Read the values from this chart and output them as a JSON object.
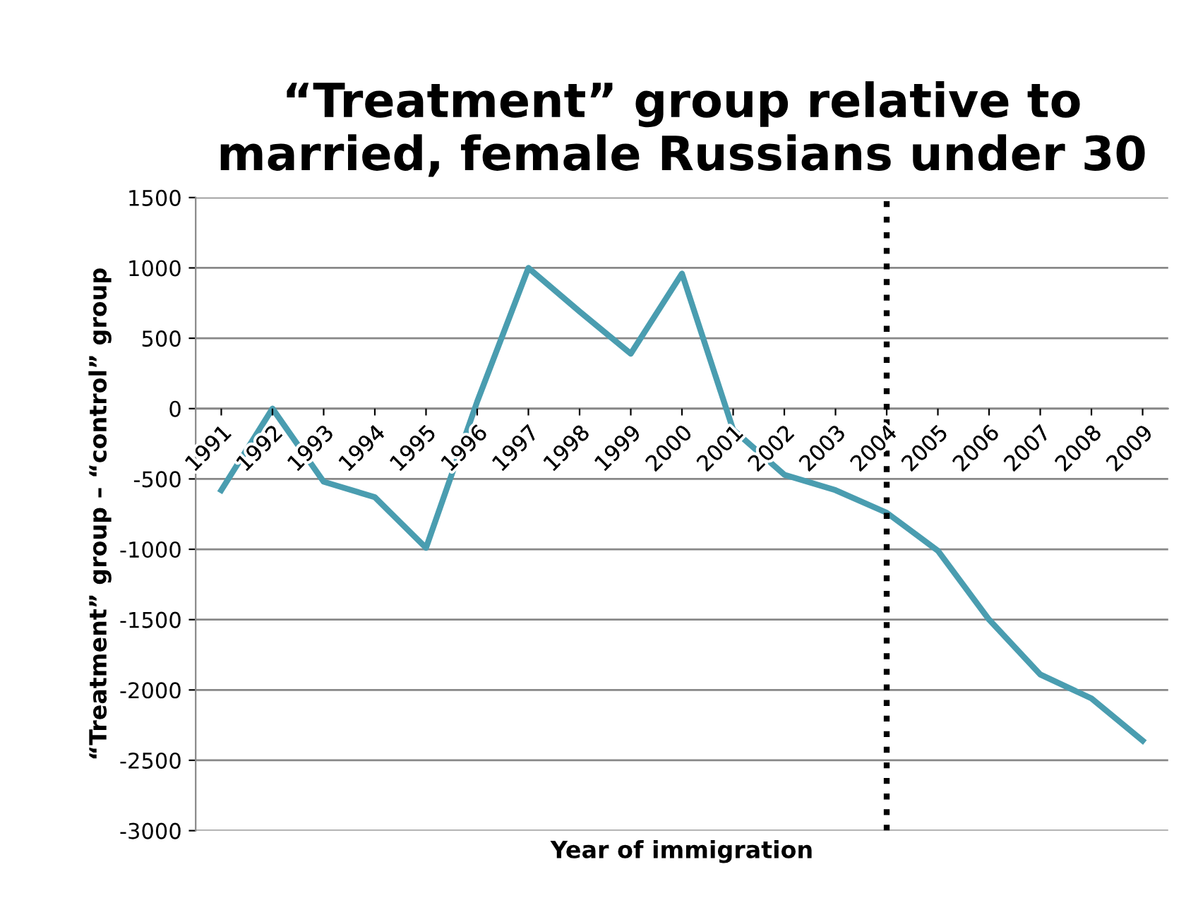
{
  "chart_data": {
    "type": "line",
    "title": "“Treatment” group relative to\nmarried, female Russians under 30",
    "xlabel": "Year of immigration",
    "ylabel": "“Treatment” group – “control” group",
    "categories": [
      "1991",
      "1992",
      "1993",
      "1994",
      "1995",
      "1996",
      "1997",
      "1998",
      "1999",
      "2000",
      "2001",
      "2002",
      "2003",
      "2004",
      "2005",
      "2006",
      "2007",
      "2008",
      "2009"
    ],
    "series": [
      {
        "color": "#4a9db0",
        "values": [
          -580,
          0,
          -520,
          -630,
          -990,
          50,
          1000,
          690,
          390,
          960,
          -150,
          -470,
          -580,
          -740,
          -1010,
          -1500,
          -1890,
          -2060,
          -2360
        ]
      }
    ],
    "ylim": [
      -3000,
      1500
    ],
    "yticks": [
      -3000,
      -2500,
      -2000,
      -1500,
      -1000,
      -500,
      0,
      500,
      1000,
      1500
    ],
    "grid": "y",
    "legend": false,
    "marker": "none",
    "line_style": "solid",
    "ref_lines": [
      {
        "axis": "x",
        "value": "2004",
        "color": "#000000",
        "line_style": "dotted"
      }
    ]
  }
}
